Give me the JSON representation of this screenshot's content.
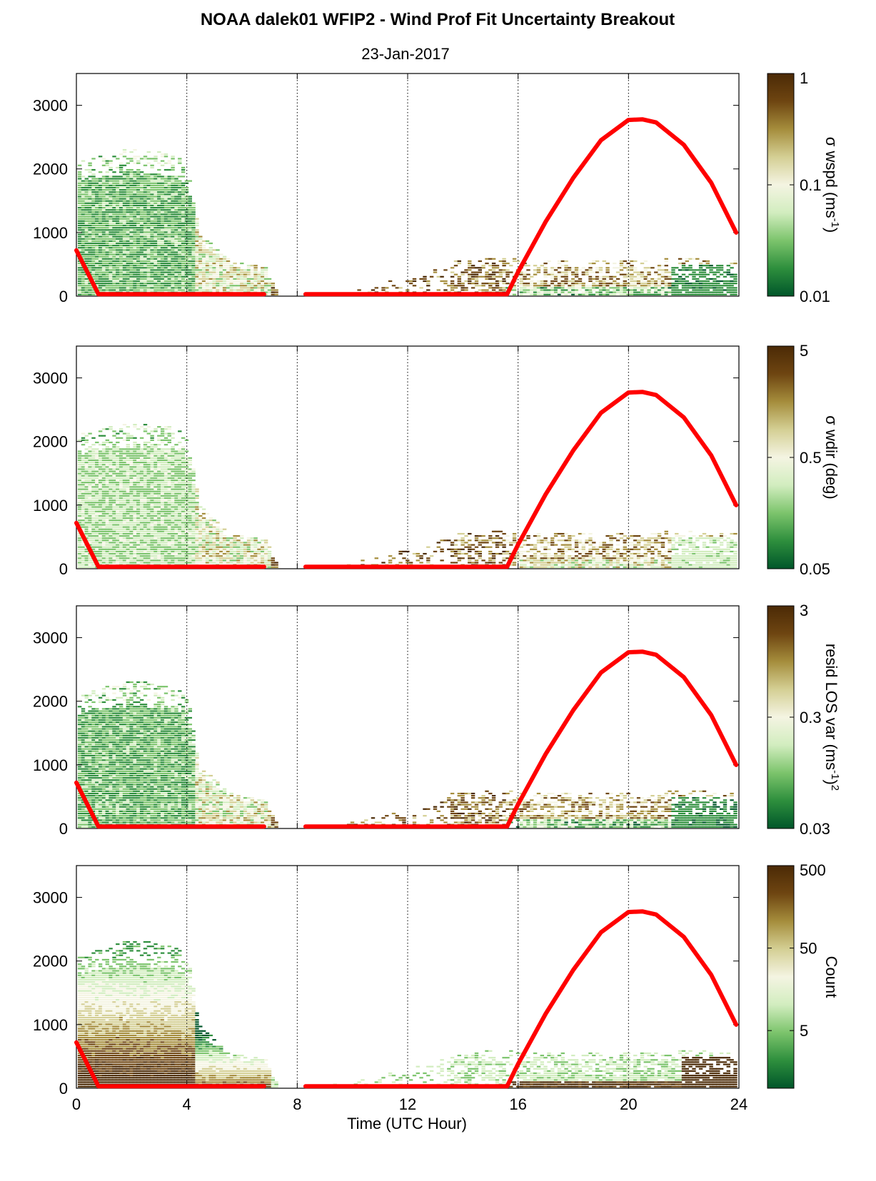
{
  "figure": {
    "title": "NOAA dalek01 WFIP2 - Wind Prof Fit Uncertainty Breakout",
    "subtitle": "23-Jan-2017",
    "xlabel": "Time (UTC Hour)"
  },
  "colormap": [
    "#00562a",
    "#2e8f3d",
    "#7cc46c",
    "#d2edbf",
    "#f4f4e2",
    "#d4cf94",
    "#a58d3c",
    "#6e4511",
    "#4b2a06"
  ],
  "red_line_color": "#ff0000",
  "chart_data": [
    {
      "type": "heatmap",
      "panel": "wspd",
      "x": "Time (UTC Hour)",
      "xlim": [
        0,
        24
      ],
      "xticks": [
        "0",
        "4",
        "8",
        "12",
        "16",
        "20",
        "24"
      ],
      "ylim": [
        0,
        3500
      ],
      "yticks": [
        "0",
        "1000",
        "2000",
        "3000"
      ],
      "colorbar": {
        "label": "σ wspd (ms",
        "sup": "-1",
        "suffix": ")",
        "scale": "log",
        "min": 0.01,
        "max": 1,
        "ticks": [
          "0.01",
          "0.1",
          "1"
        ]
      },
      "data_top_profile": [
        [
          0,
          2100
        ],
        [
          0.8,
          2200
        ],
        [
          1.6,
          2300
        ],
        [
          2.6,
          2300
        ],
        [
          3.6,
          2200
        ],
        [
          4.0,
          2000
        ],
        [
          4.4,
          1000
        ],
        [
          5.5,
          550
        ],
        [
          6.8,
          450
        ],
        [
          7.3,
          0
        ],
        [
          8.3,
          0
        ],
        [
          10.5,
          150
        ],
        [
          12,
          300
        ],
        [
          13.5,
          550
        ],
        [
          15.5,
          600
        ],
        [
          16.5,
          550
        ],
        [
          20,
          550
        ],
        [
          22,
          600
        ],
        [
          24,
          550
        ]
      ],
      "dominant_low_level": "low",
      "high_values_upper": true,
      "bl_height": [
        [
          0,
          720
        ],
        [
          0.8,
          30
        ],
        [
          6.8,
          30
        ]
      ],
      "bl_height_2": [
        [
          8.3,
          30
        ],
        [
          15.6,
          30
        ],
        [
          16,
          380
        ],
        [
          17,
          1170
        ],
        [
          18,
          1860
        ],
        [
          19,
          2450
        ],
        [
          20,
          2770
        ],
        [
          20.5,
          2780
        ],
        [
          21,
          2730
        ],
        [
          22,
          2380
        ],
        [
          23,
          1780
        ],
        [
          23.9,
          1000
        ]
      ]
    },
    {
      "type": "heatmap",
      "panel": "wdir",
      "x": "Time (UTC Hour)",
      "xlim": [
        0,
        24
      ],
      "xticks": [
        "0",
        "4",
        "8",
        "12",
        "16",
        "20",
        "24"
      ],
      "ylim": [
        0,
        3500
      ],
      "yticks": [
        "0",
        "1000",
        "2000",
        "3000"
      ],
      "colorbar": {
        "label": "σ wdir (deg)",
        "sup": "",
        "suffix": "",
        "scale": "log",
        "min": 0.05,
        "max": 5,
        "ticks": [
          "0.05",
          "0.5",
          "5"
        ]
      },
      "dominant_low_level": "mid",
      "high_values_upper": true
    },
    {
      "type": "heatmap",
      "panel": "resid",
      "x": "Time (UTC Hour)",
      "xlim": [
        0,
        24
      ],
      "xticks": [
        "0",
        "4",
        "8",
        "12",
        "16",
        "20",
        "24"
      ],
      "ylim": [
        0,
        3500
      ],
      "yticks": [
        "0",
        "1000",
        "2000",
        "3000"
      ],
      "colorbar": {
        "label": "resid LOS var (ms",
        "sup": "-1",
        "suffix": ")",
        "sup2": "2",
        "scale": "log",
        "min": 0.03,
        "max": 3,
        "ticks": [
          "0.03",
          "0.3",
          "3"
        ]
      },
      "dominant_low_level": "low",
      "high_values_upper": true
    },
    {
      "type": "heatmap",
      "panel": "count",
      "x": "Time (UTC Hour)",
      "xlim": [
        0,
        24
      ],
      "xticks": [
        "0",
        "4",
        "8",
        "12",
        "16",
        "20",
        "24"
      ],
      "ylim": [
        0,
        3500
      ],
      "yticks": [
        "0",
        "1000",
        "2000",
        "3000"
      ],
      "colorbar": {
        "label": "Count",
        "sup": "",
        "suffix": "",
        "scale": "log",
        "min": 1,
        "max": 500,
        "ticks": [
          "5",
          "50",
          "500"
        ]
      },
      "dominant_low_level": "count",
      "high_values_upper": false
    }
  ]
}
